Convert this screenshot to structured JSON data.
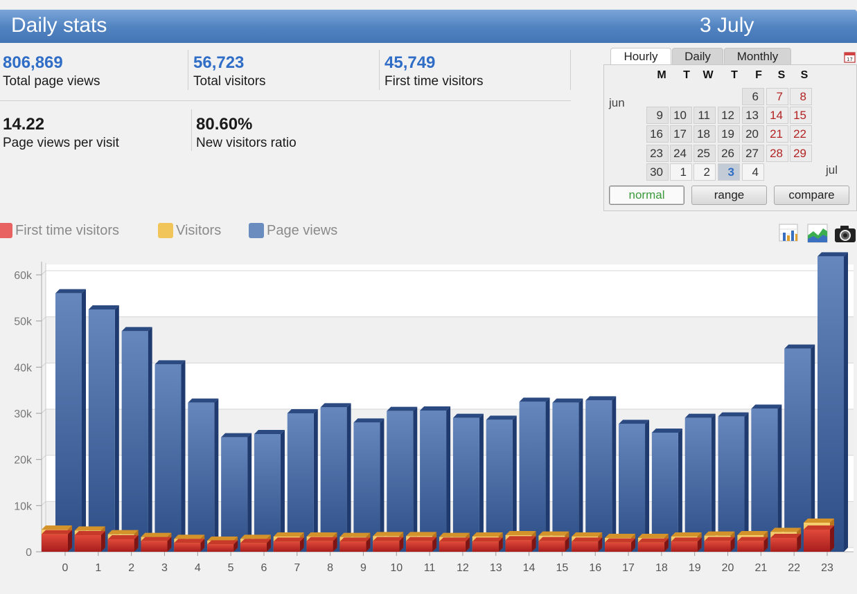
{
  "header": {
    "title": "Daily stats",
    "date": "3 July"
  },
  "stats": {
    "total_page_views": {
      "value": "806,869",
      "label": "Total page views"
    },
    "total_visitors": {
      "value": "56,723",
      "label": "Total visitors"
    },
    "first_time_visitors": {
      "value": "45,749",
      "label": "First time visitors"
    },
    "page_views_per_visit": {
      "value": "14.22",
      "label": "Page views per visit"
    },
    "new_visitors_ratio": {
      "value": "80.60%",
      "label": "New visitors ratio"
    }
  },
  "calendar": {
    "tabs": [
      "Hourly",
      "Daily",
      "Monthly"
    ],
    "active_tab": "Hourly",
    "weekday_headers": [
      "M",
      "T",
      "W",
      "T",
      "F",
      "S",
      "S"
    ],
    "month_labels": {
      "june": "jun",
      "july": "jul"
    },
    "selected_day": "3",
    "modes": [
      "normal",
      "range",
      "compare"
    ],
    "active_mode": "normal"
  },
  "legend": {
    "first_time_visitors": "First time visitors",
    "visitors": "Visitors",
    "page_views": "Page views"
  },
  "colors": {
    "accent": "#4f81c0",
    "first_time_visitors": "#e05050",
    "visitors": "#f0c050",
    "page_views": "#5b7fb5"
  },
  "icons": [
    "calendar-icon",
    "bar-chart-icon",
    "area-chart-icon",
    "camera-icon"
  ],
  "chart_data": {
    "type": "bar",
    "categories": [
      "0",
      "1",
      "2",
      "3",
      "4",
      "5",
      "6",
      "7",
      "8",
      "9",
      "10",
      "11",
      "12",
      "13",
      "14",
      "15",
      "16",
      "17",
      "18",
      "19",
      "20",
      "21",
      "22",
      "23"
    ],
    "ylim": [
      0,
      65000
    ],
    "yticks": [
      "0",
      "10k",
      "20k",
      "30k",
      "40k",
      "50k",
      "60k"
    ],
    "ytick_values": [
      0,
      10000,
      20000,
      30000,
      40000,
      50000,
      60000
    ],
    "series": [
      {
        "name": "Page views",
        "values": [
          56000,
          52500,
          47800,
          40600,
          32300,
          24800,
          25500,
          30000,
          31300,
          28000,
          30500,
          30600,
          29000,
          28600,
          32500,
          32300,
          32800,
          27700,
          25800,
          29000,
          29300,
          31000,
          44000,
          64000
        ]
      },
      {
        "name": "Visitors",
        "values": [
          4800,
          4600,
          3800,
          3200,
          2800,
          2400,
          2800,
          3300,
          3300,
          3200,
          3400,
          3400,
          3200,
          3300,
          3600,
          3500,
          3300,
          3000,
          3000,
          3300,
          3500,
          3600,
          4300,
          6300
        ]
      },
      {
        "name": "First time visitors",
        "values": [
          3800,
          3600,
          2700,
          2300,
          1900,
          1600,
          1900,
          2200,
          2300,
          2200,
          2300,
          2300,
          2200,
          2200,
          2500,
          2300,
          2200,
          2000,
          2000,
          2200,
          2300,
          2300,
          3000,
          4800
        ]
      }
    ],
    "grid": true,
    "legend_position": "top-left"
  }
}
